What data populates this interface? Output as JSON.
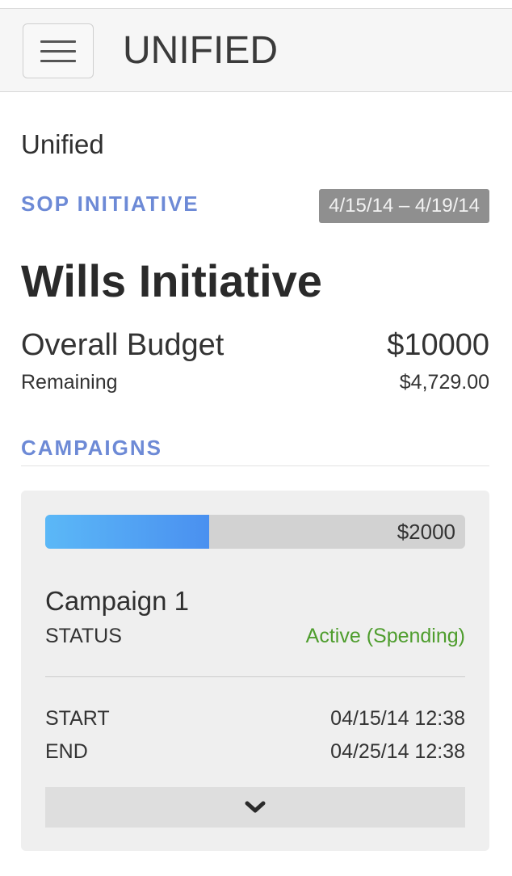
{
  "app": {
    "title": "UNIFIED",
    "menu_icon": "hamburger-menu-icon"
  },
  "breadcrumb": "Unified",
  "initiative": {
    "type_label": "SOP INITIATIVE",
    "date_range": "4/15/14 – 4/19/14",
    "title": "Wills Initiative",
    "overall_budget_label": "Overall Budget",
    "overall_budget_value": "$10000",
    "remaining_label": "Remaining",
    "remaining_value": "$4,729.00"
  },
  "campaigns": {
    "label": "CAMPAIGNS",
    "items": [
      {
        "budget_label": "$2000",
        "progress_fraction": 0.39,
        "name": "Campaign 1",
        "status_label": "STATUS",
        "status_value": "Active (Spending)",
        "start_label": "START",
        "start_value": "04/15/14 12:38",
        "end_label": "END",
        "end_value": "04/25/14 12:38",
        "expand_icon": "chevron-down-icon"
      }
    ]
  },
  "colors": {
    "accent": "#6d8ad6",
    "status_active": "#4e9d2d",
    "progress": "#4a90f0"
  }
}
